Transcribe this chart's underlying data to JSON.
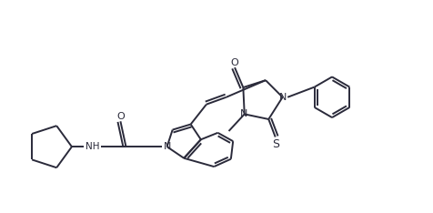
{
  "background_color": "#ffffff",
  "line_color": "#2a2a3a",
  "line_width": 1.4,
  "figsize": [
    4.77,
    2.34
  ],
  "dpi": 100,
  "xlim": [
    0,
    10
  ],
  "ylim": [
    0,
    5
  ]
}
